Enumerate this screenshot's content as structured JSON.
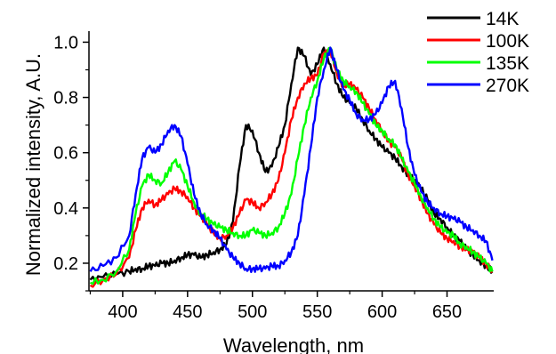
{
  "chart_data": {
    "type": "line",
    "title": "",
    "xlabel": "Wavelength, nm",
    "ylabel": "Normalized intensity, A.U.",
    "xlim": [
      374,
      686
    ],
    "ylim": [
      0.1,
      1.04
    ],
    "xticks": [
      400,
      450,
      500,
      550,
      600,
      650
    ],
    "yticks": [
      0.2,
      0.4,
      0.6,
      0.8,
      1.0
    ],
    "xtick_labels": [
      "400",
      "450",
      "500",
      "550",
      "600",
      "650"
    ],
    "ytick_labels": [
      "0.2",
      "0.4",
      "0.6",
      "0.8",
      "1.0"
    ],
    "grid": false,
    "legend_position": "top-right",
    "x": [
      375,
      385,
      395,
      405,
      410,
      415,
      420,
      425,
      430,
      435,
      440,
      445,
      450,
      455,
      460,
      465,
      470,
      475,
      480,
      485,
      490,
      495,
      500,
      505,
      510,
      515,
      520,
      525,
      530,
      535,
      540,
      545,
      550,
      555,
      560,
      565,
      570,
      575,
      580,
      585,
      590,
      595,
      600,
      605,
      610,
      615,
      620,
      625,
      630,
      635,
      640,
      645,
      650,
      655,
      660,
      665,
      670,
      675,
      680,
      685
    ],
    "series": [
      {
        "name": "14K",
        "color": "#000000",
        "values": [
          0.14,
          0.15,
          0.16,
          0.17,
          0.18,
          0.18,
          0.19,
          0.19,
          0.2,
          0.2,
          0.21,
          0.22,
          0.23,
          0.23,
          0.22,
          0.23,
          0.24,
          0.25,
          0.27,
          0.35,
          0.55,
          0.7,
          0.68,
          0.6,
          0.53,
          0.55,
          0.62,
          0.7,
          0.85,
          0.98,
          0.95,
          0.88,
          0.92,
          0.98,
          0.92,
          0.85,
          0.8,
          0.78,
          0.76,
          0.72,
          0.68,
          0.65,
          0.62,
          0.6,
          0.58,
          0.55,
          0.52,
          0.5,
          0.47,
          0.43,
          0.38,
          0.36,
          0.33,
          0.3,
          0.28,
          0.25,
          0.23,
          0.21,
          0.19,
          0.17
        ]
      },
      {
        "name": "100K",
        "color": "#ff0000",
        "values": [
          0.12,
          0.14,
          0.16,
          0.22,
          0.32,
          0.4,
          0.43,
          0.41,
          0.43,
          0.45,
          0.47,
          0.46,
          0.44,
          0.4,
          0.37,
          0.34,
          0.31,
          0.29,
          0.3,
          0.33,
          0.38,
          0.43,
          0.42,
          0.4,
          0.42,
          0.45,
          0.5,
          0.6,
          0.72,
          0.8,
          0.85,
          0.87,
          0.88,
          0.96,
          0.97,
          0.89,
          0.84,
          0.85,
          0.83,
          0.8,
          0.76,
          0.72,
          0.68,
          0.64,
          0.62,
          0.58,
          0.52,
          0.48,
          0.43,
          0.38,
          0.34,
          0.31,
          0.29,
          0.28,
          0.26,
          0.25,
          0.24,
          0.22,
          0.2,
          0.17
        ]
      },
      {
        "name": "135K",
        "color": "#00ff00",
        "values": [
          0.13,
          0.14,
          0.17,
          0.25,
          0.38,
          0.48,
          0.52,
          0.5,
          0.49,
          0.53,
          0.57,
          0.54,
          0.48,
          0.42,
          0.38,
          0.36,
          0.34,
          0.33,
          0.32,
          0.31,
          0.3,
          0.3,
          0.32,
          0.31,
          0.3,
          0.31,
          0.33,
          0.38,
          0.45,
          0.58,
          0.7,
          0.8,
          0.86,
          0.94,
          0.98,
          0.9,
          0.86,
          0.84,
          0.82,
          0.78,
          0.74,
          0.7,
          0.68,
          0.65,
          0.63,
          0.58,
          0.53,
          0.49,
          0.44,
          0.4,
          0.36,
          0.33,
          0.31,
          0.3,
          0.27,
          0.26,
          0.24,
          0.22,
          0.2,
          0.17
        ]
      },
      {
        "name": "270K",
        "color": "#0000ff",
        "values": [
          0.17,
          0.19,
          0.22,
          0.3,
          0.45,
          0.58,
          0.62,
          0.6,
          0.63,
          0.68,
          0.7,
          0.66,
          0.56,
          0.45,
          0.38,
          0.34,
          0.32,
          0.29,
          0.25,
          0.22,
          0.2,
          0.18,
          0.18,
          0.18,
          0.18,
          0.19,
          0.19,
          0.21,
          0.24,
          0.3,
          0.45,
          0.62,
          0.8,
          0.9,
          0.98,
          0.9,
          0.83,
          0.79,
          0.74,
          0.72,
          0.72,
          0.74,
          0.78,
          0.84,
          0.86,
          0.76,
          0.62,
          0.52,
          0.46,
          0.42,
          0.4,
          0.38,
          0.37,
          0.36,
          0.35,
          0.33,
          0.32,
          0.3,
          0.28,
          0.21
        ]
      }
    ]
  }
}
